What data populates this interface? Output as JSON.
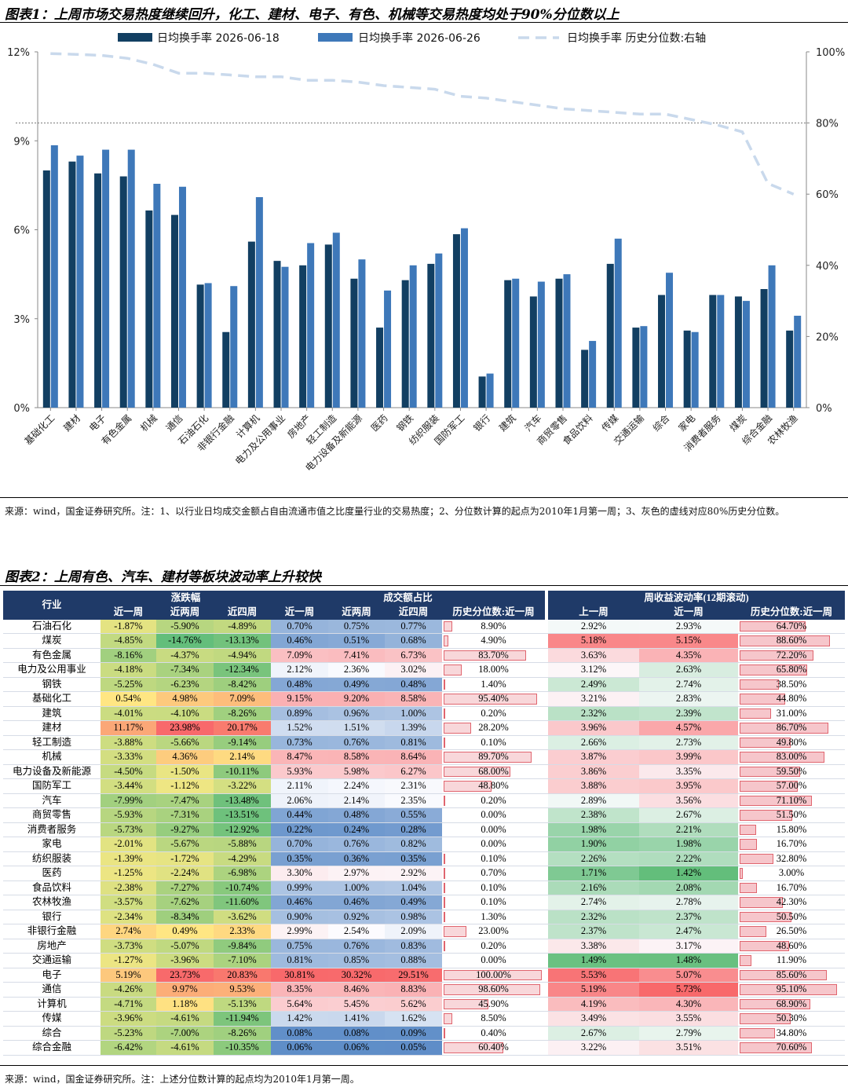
{
  "figure1": {
    "title": "图表1：上周市场交易热度继续回升，化工、建材、电子、有色、机械等交易热度均处于90%分位数以上",
    "source_note": "来源：wind，国金证券研究所。注：1、以行业日均成交金额占自由流通市值之比度量行业的交易热度；2、分位数计算的起点为2010年1月第一周；3、灰色的虚线对应80%历史分位数。",
    "chart_data": {
      "type": "bar",
      "categories": [
        "基础化工",
        "建材",
        "电子",
        "有色金属",
        "机械",
        "通信",
        "石油石化",
        "非银行金融",
        "计算机",
        "电力及公用事业",
        "房地产",
        "轻工制造",
        "电力设备及新能源",
        "医药",
        "钢铁",
        "纺织服装",
        "国防军工",
        "银行",
        "建筑",
        "汽车",
        "商贸零售",
        "食品饮料",
        "传媒",
        "交通运输",
        "综合",
        "家电",
        "消费者服务",
        "煤炭",
        "综合金融",
        "农林牧渔"
      ],
      "series": [
        {
          "name": "日均换手率 2026-06-18",
          "axis": "left",
          "color": "#123f62",
          "values": [
            8.0,
            8.3,
            7.9,
            7.8,
            6.65,
            6.5,
            4.15,
            2.55,
            5.6,
            4.95,
            4.8,
            5.5,
            4.35,
            2.7,
            4.3,
            4.85,
            5.85,
            1.05,
            4.3,
            3.75,
            4.35,
            1.95,
            4.85,
            2.7,
            3.8,
            2.6,
            3.8,
            3.75,
            4.0,
            2.6
          ]
        },
        {
          "name": "日均换手率 2026-06-26",
          "axis": "right",
          "color": "#3e78b9",
          "values": [
            8.85,
            8.5,
            8.7,
            8.7,
            7.55,
            7.45,
            4.2,
            4.1,
            7.1,
            4.75,
            5.55,
            5.9,
            5.0,
            3.95,
            4.8,
            5.2,
            6.05,
            1.15,
            4.35,
            4.25,
            4.5,
            2.25,
            5.7,
            2.75,
            4.55,
            2.55,
            3.8,
            3.6,
            4.8,
            3.1
          ]
        },
        {
          "name": "日均换手率 历史分位数:右轴",
          "type": "line",
          "axis": "right",
          "color": "#c9d9ec",
          "dash": true,
          "values": [
            99.5,
            99.3,
            99.0,
            98.2,
            96.5,
            94.0,
            94.0,
            93.5,
            93.0,
            93.0,
            92.0,
            92.0,
            91.5,
            90.5,
            90.0,
            89.5,
            87.5,
            87.0,
            86.0,
            85.0,
            84.0,
            83.5,
            83.0,
            82.5,
            82.5,
            81.0,
            79.5,
            77.5,
            63.0,
            60.0
          ]
        }
      ],
      "legend": [
        "日均换手率 2026-06-18",
        "日均换手率 2026-06-26",
        "日均换手率 历史分位数:右轴"
      ],
      "legend_position": "top",
      "y_left": {
        "ticks": [
          "0%",
          "3%",
          "6%",
          "9%",
          "12%"
        ],
        "ylim": [
          0,
          12
        ]
      },
      "y_right": {
        "ticks": [
          "0%",
          "20%",
          "40%",
          "60%",
          "80%",
          "100%"
        ],
        "ylim": [
          0,
          100
        ]
      },
      "reference_line": {
        "axis": "right",
        "value": 80,
        "color": "#777777",
        "dash": true
      }
    }
  },
  "figure2": {
    "title": "图表2：上周有色、汽车、建材等板块波动率上升较快",
    "source_note": "来源：wind，国金证券研究所。注：上述分位数计算的起点均为2010年1月第一周。",
    "chart_data": {
      "type": "table",
      "group_headers": {
        "industry": "行业",
        "change": "涨跌幅",
        "turnover": "成交额占比",
        "vol": "周收益波动率(12期滚动)"
      },
      "columns": [
        "近一周",
        "近两周",
        "近四周",
        "近一周",
        "近两周",
        "近四周",
        "历史分位数:近一周",
        "上一周",
        "近一周",
        "历史分位数:近一周"
      ],
      "rows": [
        [
          "石油石化",
          "-1.87%",
          "-5.90%",
          "-4.89%",
          "0.70%",
          "0.75%",
          "0.77%",
          "8.90%",
          "2.92%",
          "2.93%",
          "64.70%"
        ],
        [
          "煤炭",
          "-4.85%",
          "-14.76%",
          "-13.13%",
          "0.46%",
          "0.51%",
          "0.68%",
          "4.90%",
          "5.18%",
          "5.15%",
          "88.60%"
        ],
        [
          "有色金属",
          "-8.16%",
          "-4.37%",
          "-4.94%",
          "7.09%",
          "7.41%",
          "6.73%",
          "83.70%",
          "3.63%",
          "4.35%",
          "72.20%"
        ],
        [
          "电力及公用事业",
          "-4.18%",
          "-7.34%",
          "-12.34%",
          "2.12%",
          "2.36%",
          "3.02%",
          "18.00%",
          "3.12%",
          "2.63%",
          "65.80%"
        ],
        [
          "钢铁",
          "-5.25%",
          "-6.23%",
          "-8.42%",
          "0.48%",
          "0.49%",
          "0.48%",
          "1.40%",
          "2.49%",
          "2.74%",
          "38.50%"
        ],
        [
          "基础化工",
          "0.54%",
          "4.98%",
          "7.09%",
          "9.15%",
          "9.20%",
          "8.58%",
          "95.40%",
          "3.21%",
          "2.83%",
          "44.80%"
        ],
        [
          "建筑",
          "-4.01%",
          "-4.10%",
          "-8.26%",
          "0.89%",
          "0.96%",
          "1.00%",
          "0.20%",
          "2.32%",
          "2.39%",
          "31.00%"
        ],
        [
          "建材",
          "11.17%",
          "23.98%",
          "20.17%",
          "1.52%",
          "1.51%",
          "1.39%",
          "28.20%",
          "3.96%",
          "4.57%",
          "86.70%"
        ],
        [
          "轻工制造",
          "-3.88%",
          "-5.66%",
          "-9.14%",
          "0.73%",
          "0.76%",
          "0.81%",
          "0.10%",
          "2.66%",
          "2.73%",
          "49.80%"
        ],
        [
          "机械",
          "-3.33%",
          "4.36%",
          "2.14%",
          "8.47%",
          "8.58%",
          "8.64%",
          "89.70%",
          "3.87%",
          "3.99%",
          "83.00%"
        ],
        [
          "电力设备及新能源",
          "-4.50%",
          "-1.50%",
          "-10.11%",
          "5.93%",
          "5.98%",
          "6.27%",
          "68.00%",
          "3.86%",
          "3.35%",
          "59.50%"
        ],
        [
          "国防军工",
          "-3.44%",
          "-1.12%",
          "-3.22%",
          "2.11%",
          "2.24%",
          "2.31%",
          "48.80%",
          "3.88%",
          "3.95%",
          "57.00%"
        ],
        [
          "汽车",
          "-7.99%",
          "-7.47%",
          "-13.48%",
          "2.06%",
          "2.14%",
          "2.35%",
          "0.20%",
          "2.89%",
          "3.56%",
          "71.10%"
        ],
        [
          "商贸零售",
          "-5.93%",
          "-7.31%",
          "-13.51%",
          "0.44%",
          "0.48%",
          "0.55%",
          "0.00%",
          "2.38%",
          "2.67%",
          "51.50%"
        ],
        [
          "消费者服务",
          "-5.73%",
          "-9.27%",
          "-12.92%",
          "0.22%",
          "0.24%",
          "0.28%",
          "0.00%",
          "1.98%",
          "2.21%",
          "15.80%"
        ],
        [
          "家电",
          "-2.01%",
          "-5.67%",
          "-5.88%",
          "0.70%",
          "0.76%",
          "0.82%",
          "0.00%",
          "1.90%",
          "1.98%",
          "16.70%"
        ],
        [
          "纺织服装",
          "-1.39%",
          "-1.72%",
          "-4.29%",
          "0.35%",
          "0.36%",
          "0.35%",
          "0.10%",
          "2.26%",
          "2.22%",
          "32.80%"
        ],
        [
          "医药",
          "-1.25%",
          "-2.24%",
          "-6.98%",
          "3.30%",
          "2.97%",
          "2.92%",
          "0.70%",
          "1.71%",
          "1.42%",
          "3.00%"
        ],
        [
          "食品饮料",
          "-2.38%",
          "-7.27%",
          "-10.74%",
          "0.99%",
          "1.00%",
          "1.04%",
          "0.10%",
          "2.16%",
          "2.08%",
          "16.70%"
        ],
        [
          "农林牧渔",
          "-3.57%",
          "-7.62%",
          "-11.60%",
          "0.46%",
          "0.46%",
          "0.49%",
          "0.10%",
          "2.74%",
          "2.78%",
          "42.30%"
        ],
        [
          "银行",
          "-2.34%",
          "-8.34%",
          "-3.62%",
          "0.90%",
          "0.92%",
          "0.98%",
          "1.30%",
          "2.32%",
          "2.37%",
          "50.50%"
        ],
        [
          "非银行金融",
          "2.74%",
          "0.49%",
          "2.33%",
          "2.99%",
          "2.54%",
          "2.09%",
          "23.00%",
          "2.37%",
          "2.47%",
          "26.50%"
        ],
        [
          "房地产",
          "-3.73%",
          "-5.07%",
          "-9.84%",
          "0.75%",
          "0.76%",
          "0.83%",
          "0.20%",
          "3.38%",
          "3.17%",
          "48.60%"
        ],
        [
          "交通运输",
          "-1.27%",
          "-3.96%",
          "-7.10%",
          "0.81%",
          "0.85%",
          "0.88%",
          "0.00%",
          "1.49%",
          "1.48%",
          "11.90%"
        ],
        [
          "电子",
          "5.19%",
          "23.73%",
          "20.83%",
          "30.81%",
          "30.32%",
          "29.51%",
          "100.00%",
          "5.53%",
          "5.07%",
          "85.60%"
        ],
        [
          "通信",
          "-4.26%",
          "9.97%",
          "9.53%",
          "8.35%",
          "8.46%",
          "8.83%",
          "98.60%",
          "5.19%",
          "5.73%",
          "95.10%"
        ],
        [
          "计算机",
          "-4.71%",
          "1.18%",
          "-5.13%",
          "5.64%",
          "5.45%",
          "5.62%",
          "45.90%",
          "4.19%",
          "4.30%",
          "68.90%"
        ],
        [
          "传媒",
          "-3.96%",
          "-4.61%",
          "-11.94%",
          "1.42%",
          "1.41%",
          "1.62%",
          "8.50%",
          "3.49%",
          "3.55%",
          "50.30%"
        ],
        [
          "综合",
          "-5.23%",
          "-7.00%",
          "-8.26%",
          "0.08%",
          "0.08%",
          "0.09%",
          "0.40%",
          "2.67%",
          "2.79%",
          "34.80%"
        ],
        [
          "综合金融",
          "-6.42%",
          "-4.61%",
          "-10.35%",
          "0.06%",
          "0.06%",
          "0.05%",
          "60.40%",
          "3.22%",
          "3.51%",
          "70.60%"
        ]
      ]
    }
  }
}
